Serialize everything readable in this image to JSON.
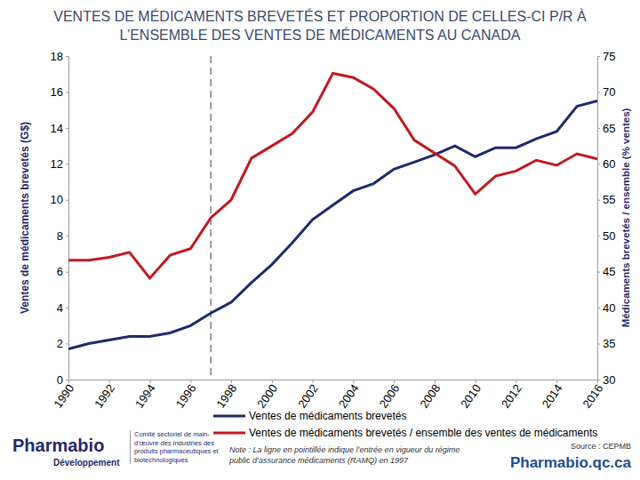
{
  "chart_data": {
    "type": "line",
    "title": "VENTES DE MÉDICAMENTS BREVETÉS ET PROPORTION DE CELLES-CI P/R À L’ENSEMBLE DES VENTES DE MÉDICAMENTS AU CANADA",
    "ylabel": "Ventes de médicaments brevetés (G$)",
    "y2label": "Médicaments brevetés / ensemble (% ventes)",
    "x": [
      1990,
      1991,
      1992,
      1993,
      1994,
      1995,
      1996,
      1997,
      1998,
      1999,
      2000,
      2001,
      2002,
      2003,
      2004,
      2005,
      2006,
      2007,
      2008,
      2009,
      2010,
      2011,
      2012,
      2013,
      2014,
      2015,
      2016
    ],
    "xlim": [
      1990,
      2016
    ],
    "xticks": [
      1990,
      1992,
      1994,
      1996,
      1998,
      2000,
      2002,
      2004,
      2006,
      2008,
      2010,
      2012,
      2014,
      2016
    ],
    "ylim": [
      0,
      18
    ],
    "yticks": [
      0,
      2,
      4,
      6,
      8,
      10,
      12,
      14,
      16,
      18
    ],
    "y2lim": [
      30,
      75
    ],
    "y2ticks": [
      30,
      35,
      40,
      45,
      50,
      55,
      60,
      65,
      70,
      75
    ],
    "series": [
      {
        "name": "Ventes de médicaments brevetés",
        "color": "#1f2a6b",
        "values": [
          1.7,
          2.0,
          2.2,
          2.4,
          2.4,
          2.6,
          3.0,
          3.7,
          4.3,
          5.4,
          6.4,
          7.6,
          8.9,
          9.7,
          10.5,
          10.9,
          11.7,
          12.1,
          12.5,
          13.0,
          12.4,
          12.9,
          12.9,
          13.4,
          13.8,
          15.2,
          15.5
        ]
      },
      {
        "name": "Ventes de médicaments brevetés / ensemble des ventes de médicaments",
        "color": "#c0191f",
        "axis": "y2",
        "values": [
          46.6,
          46.6,
          47.0,
          47.7,
          44.1,
          47.3,
          48.2,
          52.5,
          55.0,
          60.8,
          62.5,
          64.2,
          67.2,
          72.6,
          72.0,
          70.4,
          67.7,
          63.3,
          61.5,
          59.7,
          55.8,
          58.3,
          59.0,
          60.5,
          59.8,
          61.4,
          60.7
        ]
      }
    ],
    "legend": "bottom",
    "vline": {
      "x": 1997,
      "line_style": "dashed"
    },
    "note": "Note : La ligne en pointillée indique l’entrée en vigueur du régime public d’assurance médicaments (RAMQ) en 1997",
    "source": "Source : CEPMB",
    "footer": {
      "brand": "Pharmabio",
      "brand_sub": "Développement",
      "committee": "Comité sectoriel de main-d’œuvre des industries des produits pharmaceutiques et biotechnologiques",
      "website": "Pharmabio.qc.ca"
    }
  }
}
